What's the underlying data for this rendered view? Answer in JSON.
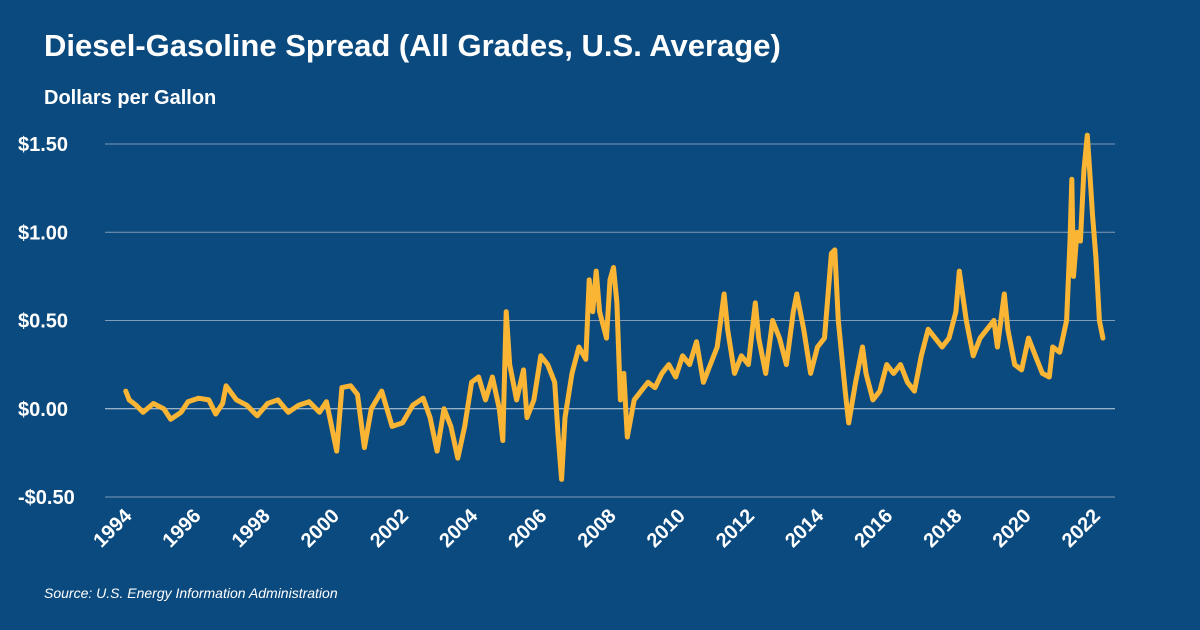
{
  "chart_data": {
    "type": "line",
    "title": "Diesel-Gasoline Spread (All Grades, U.S. Average)",
    "y_axis_label": "Dollars per Gallon",
    "source": "Source: U.S. Energy Information Administration",
    "background": "#0b4a7e",
    "grid": true,
    "xlim": [
      1993.6,
      2022.8
    ],
    "xticks": [
      1994,
      1996,
      1998,
      2000,
      2002,
      2004,
      2006,
      2008,
      2010,
      2012,
      2014,
      2016,
      2018,
      2020,
      2022
    ],
    "ylim": [
      -0.5,
      1.5
    ],
    "yticks": [
      {
        "value": -0.5,
        "label": "-$0.50"
      },
      {
        "value": 0,
        "label": "$0.00"
      },
      {
        "value": 0.5,
        "label": "$0.50"
      },
      {
        "value": 1,
        "label": "$1.00"
      },
      {
        "value": 1.5,
        "label": "$1.50"
      }
    ],
    "series": [
      {
        "name": "Diesel-Gasoline Spread",
        "color": "#fbb534",
        "x": [
          1994.2,
          1994.3,
          1994.5,
          1994.7,
          1995.0,
          1995.3,
          1995.5,
          1995.8,
          1996.0,
          1996.3,
          1996.6,
          1996.8,
          1997.0,
          1997.1,
          1997.4,
          1997.7,
          1998.0,
          1998.3,
          1998.6,
          1998.9,
          1999.2,
          1999.5,
          1999.8,
          2000.0,
          2000.1,
          2000.3,
          2000.45,
          2000.7,
          2000.9,
          2001.1,
          2001.3,
          2001.6,
          2001.9,
          2002.2,
          2002.5,
          2002.8,
          2003.0,
          2003.2,
          2003.4,
          2003.6,
          2003.8,
          2004.0,
          2004.2,
          2004.4,
          2004.6,
          2004.8,
          2005.0,
          2005.1,
          2005.2,
          2005.3,
          2005.5,
          2005.7,
          2005.8,
          2006.0,
          2006.2,
          2006.4,
          2006.6,
          2006.7,
          2006.8,
          2006.9,
          2007.1,
          2007.3,
          2007.5,
          2007.6,
          2007.7,
          2007.8,
          2007.9,
          2008.1,
          2008.2,
          2008.3,
          2008.4,
          2008.5,
          2008.6,
          2008.7,
          2008.9,
          2009.1,
          2009.3,
          2009.5,
          2009.7,
          2009.9,
          2010.1,
          2010.3,
          2010.5,
          2010.7,
          2010.9,
          2011.1,
          2011.3,
          2011.5,
          2011.6,
          2011.8,
          2012.0,
          2012.2,
          2012.4,
          2012.5,
          2012.7,
          2012.9,
          2013.1,
          2013.3,
          2013.5,
          2013.6,
          2013.8,
          2014.0,
          2014.2,
          2014.4,
          2014.6,
          2014.7,
          2014.8,
          2015.0,
          2015.1,
          2015.3,
          2015.5,
          2015.6,
          2015.8,
          2016.0,
          2016.2,
          2016.4,
          2016.6,
          2016.8,
          2017.0,
          2017.2,
          2017.4,
          2017.6,
          2017.8,
          2018.0,
          2018.2,
          2018.3,
          2018.5,
          2018.7,
          2018.9,
          2019.1,
          2019.3,
          2019.4,
          2019.6,
          2019.7,
          2019.9,
          2020.1,
          2020.3,
          2020.5,
          2020.7,
          2020.9,
          2021.0,
          2021.2,
          2021.4,
          2021.5,
          2021.55,
          2021.6,
          2021.7,
          2021.8,
          2021.9,
          2022.0,
          2022.05,
          2022.15,
          2022.25,
          2022.35,
          2022.45
        ],
        "values": [
          0.1,
          0.05,
          0.02,
          -0.02,
          0.03,
          0.0,
          -0.06,
          -0.02,
          0.04,
          0.06,
          0.05,
          -0.03,
          0.03,
          0.13,
          0.05,
          0.02,
          -0.04,
          0.03,
          0.05,
          -0.02,
          0.02,
          0.04,
          -0.02,
          0.04,
          -0.05,
          -0.24,
          0.12,
          0.13,
          0.08,
          -0.22,
          0.0,
          0.1,
          -0.1,
          -0.08,
          0.02,
          0.06,
          -0.05,
          -0.24,
          0.0,
          -0.1,
          -0.28,
          -0.1,
          0.15,
          0.18,
          0.05,
          0.18,
          0.0,
          -0.18,
          0.55,
          0.25,
          0.05,
          0.22,
          -0.05,
          0.05,
          0.3,
          0.25,
          0.15,
          -0.15,
          -0.4,
          -0.05,
          0.2,
          0.35,
          0.28,
          0.73,
          0.55,
          0.78,
          0.55,
          0.4,
          0.73,
          0.8,
          0.6,
          0.05,
          0.2,
          -0.16,
          0.05,
          0.1,
          0.15,
          0.12,
          0.2,
          0.25,
          0.18,
          0.3,
          0.25,
          0.38,
          0.15,
          0.25,
          0.35,
          0.65,
          0.45,
          0.2,
          0.3,
          0.25,
          0.6,
          0.4,
          0.2,
          0.5,
          0.4,
          0.25,
          0.55,
          0.65,
          0.45,
          0.2,
          0.35,
          0.4,
          0.88,
          0.9,
          0.5,
          0.1,
          -0.08,
          0.15,
          0.35,
          0.2,
          0.05,
          0.1,
          0.25,
          0.2,
          0.25,
          0.15,
          0.1,
          0.3,
          0.45,
          0.4,
          0.35,
          0.4,
          0.55,
          0.78,
          0.5,
          0.3,
          0.4,
          0.45,
          0.5,
          0.35,
          0.65,
          0.45,
          0.25,
          0.22,
          0.4,
          0.3,
          0.2,
          0.18,
          0.35,
          0.32,
          0.5,
          0.95,
          1.3,
          0.75,
          1.0,
          0.95,
          1.35,
          1.55,
          1.4,
          1.1,
          0.85,
          0.5,
          0.4
        ]
      }
    ]
  }
}
